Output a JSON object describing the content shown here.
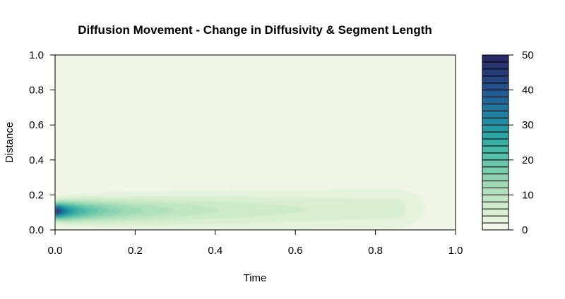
{
  "chart_data": {
    "type": "heatmap",
    "title": "Diffusion Movement - Change in Diffusivity & Segment Length",
    "xlabel": "Time",
    "ylabel": "Distance",
    "xlim": [
      0,
      1
    ],
    "ylim": [
      0,
      1
    ],
    "x_ticks": [
      "0.0",
      "0.2",
      "0.4",
      "0.6",
      "0.8",
      "1.0"
    ],
    "y_ticks": [
      "0.0",
      "0.2",
      "0.4",
      "0.6",
      "0.8",
      "1.0"
    ],
    "colorbar": {
      "range": [
        0,
        50
      ],
      "levels": 25,
      "ticks": [
        "0",
        "10",
        "20",
        "30",
        "40",
        "50"
      ],
      "colors": [
        "#f1f6e6",
        "#e6f3dc",
        "#daefd2",
        "#cdebca",
        "#c0e6c3",
        "#b1e1bc",
        "#a0dbb6",
        "#8ed4b1",
        "#7bcdad",
        "#69c6aa",
        "#58bfa8",
        "#48b7a6",
        "#3aaea5",
        "#2fa4a4",
        "#2799a3",
        "#228da2",
        "#1f80a0",
        "#1f739d",
        "#206698",
        "#225a92",
        "#244f8a",
        "#254581",
        "#263c78",
        "#27346e",
        "#272b65"
      ]
    },
    "plume": {
      "description_peak_time": 0.0,
      "peak_distance": 0.11,
      "peak_value": 50,
      "tail_end_time": 0.97
    },
    "grid": false
  }
}
